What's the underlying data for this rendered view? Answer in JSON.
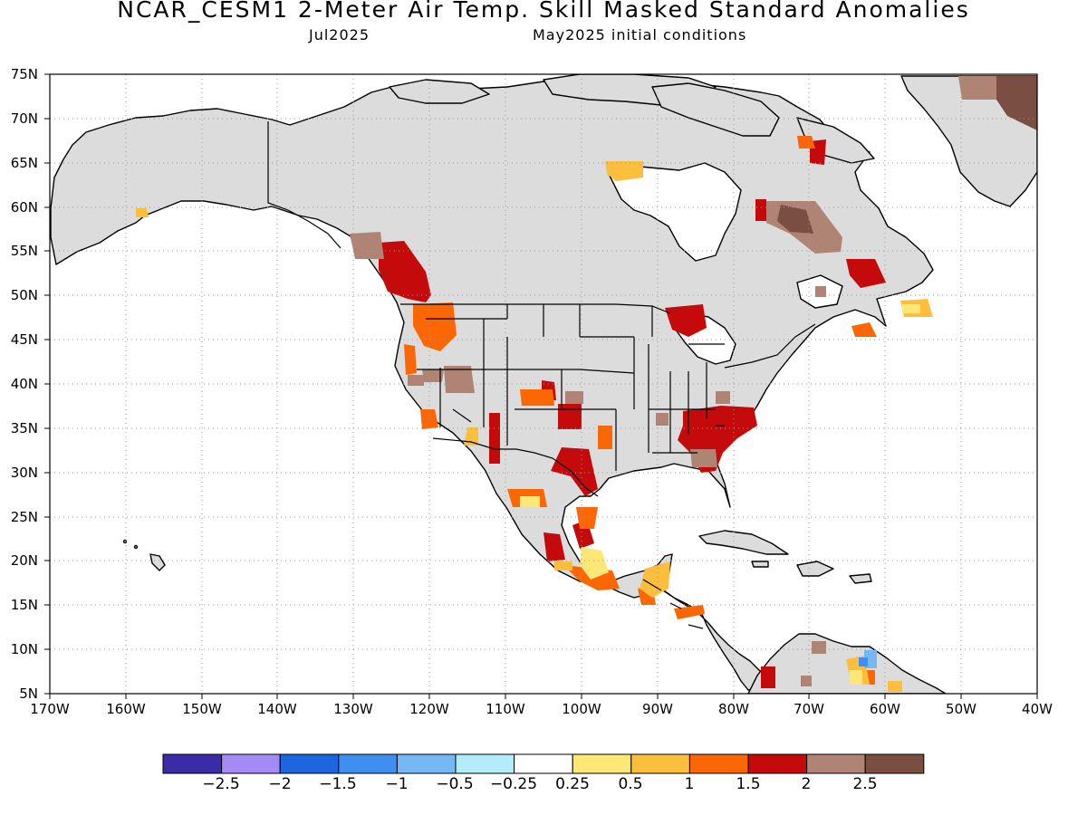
{
  "title": "NCAR_CESM1 2-Meter Air Temp. Skill Masked Standard Anomalies",
  "subtitle_left": "Jul2025",
  "subtitle_right": "May2025 initial conditions",
  "lat_labels": [
    "75N",
    "70N",
    "65N",
    "60N",
    "55N",
    "50N",
    "45N",
    "40N",
    "35N",
    "30N",
    "25N",
    "20N",
    "15N",
    "10N",
    "5N"
  ],
  "lon_labels": [
    "170W",
    "160W",
    "150W",
    "140W",
    "130W",
    "120W",
    "110W",
    "100W",
    "90W",
    "80W",
    "70W",
    "60W",
    "50W",
    "40W"
  ],
  "colorbar": {
    "labels": [
      "-2.5",
      "-2",
      "-1.5",
      "-1",
      "-0.5",
      "-0.25",
      "0.25",
      "0.5",
      "1",
      "1.5",
      "2",
      "2.5"
    ],
    "colors": [
      "#3a2ba8",
      "#a38af5",
      "#1e66e0",
      "#3f8ff0",
      "#75b8f5",
      "#b3ecfb",
      "#ffffff",
      "#fde776",
      "#fbbf3d",
      "#fb6705",
      "#c40a0a",
      "#b08474",
      "#7a4e40"
    ]
  },
  "colors": {
    "no_skill": "#dcdcdc",
    "coast": "#000000",
    "grid": "#9a9a9a"
  }
}
